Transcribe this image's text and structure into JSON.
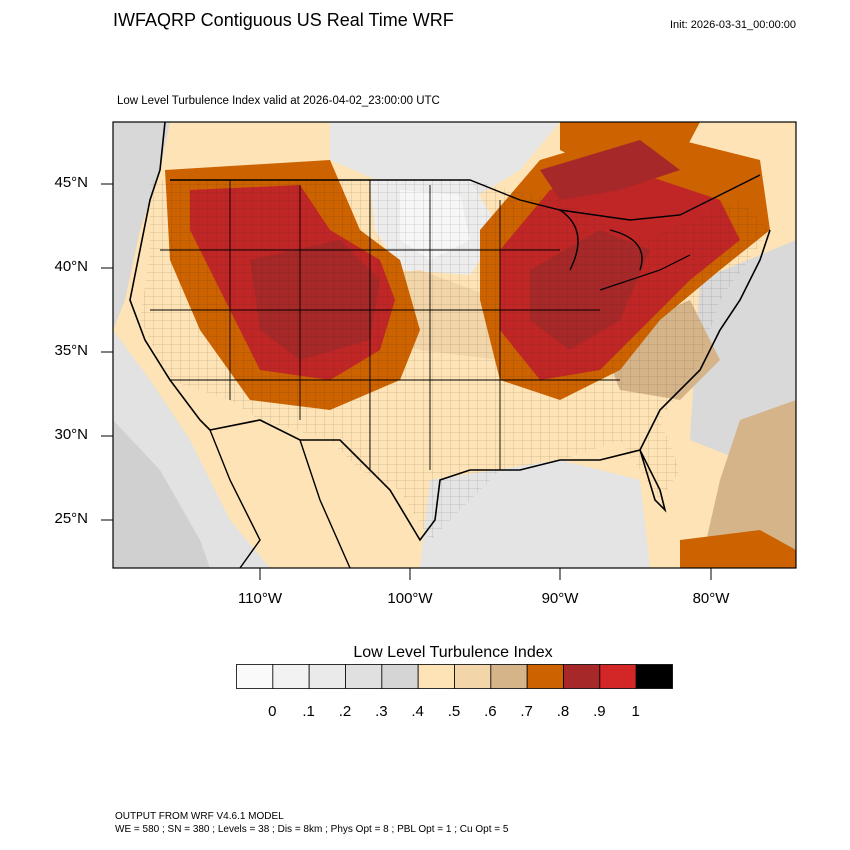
{
  "header": {
    "title": "IWFAQRP Contiguous US Real Time WRF",
    "init": "Init: 2026-03-31_00:00:00",
    "subtitle": "Low Level Turbulence Index valid at 2026-04-02_23:00:00 UTC"
  },
  "axes": {
    "lat_labels": [
      "45°N",
      "40°N",
      "35°N",
      "30°N",
      "25°N"
    ],
    "lon_labels": [
      "110°W",
      "100°W",
      "90°W",
      "80°W"
    ]
  },
  "colorbar": {
    "title": "Low Level Turbulence Index",
    "labels": [
      "0",
      ".1",
      ".2",
      ".3",
      ".4",
      ".5",
      ".6",
      ".7",
      ".8",
      ".9",
      "1"
    ],
    "colors": [
      "#fafafa",
      "#f2f2f2",
      "#eaeaea",
      "#e0e0e0",
      "#d5d5d5",
      "#fde3b5",
      "#f2d6a9",
      "#d5b48a",
      "#cc6200",
      "#a72828",
      "#d32727",
      "#000000"
    ]
  },
  "footer": {
    "line1": "OUTPUT FROM WRF V4.6.1 MODEL",
    "line2": "WE = 580 ; SN = 380 ; Levels = 38 ; Dis = 8km ; Phys Opt = 8 ; PBL Opt = 1 ; Cu Opt = 5"
  }
}
